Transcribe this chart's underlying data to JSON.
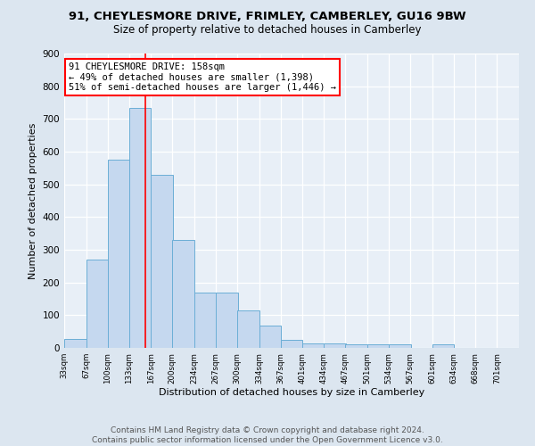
{
  "title": "91, CHEYLESMORE DRIVE, FRIMLEY, CAMBERLEY, GU16 9BW",
  "subtitle": "Size of property relative to detached houses in Camberley",
  "xlabel": "Distribution of detached houses by size in Camberley",
  "ylabel": "Number of detached properties",
  "bar_color": "#c5d8ef",
  "bar_edge_color": "#6baed6",
  "background_color": "#dce6f0",
  "plot_bg_color": "#e8eff7",
  "grid_color": "#ffffff",
  "vline_x": 158,
  "vline_color": "red",
  "annotation_title": "91 CHEYLESMORE DRIVE: 158sqm",
  "annotation_line1": "← 49% of detached houses are smaller (1,398)",
  "annotation_line2": "51% of semi-detached houses are larger (1,446) →",
  "bin_edges": [
    33,
    67,
    100,
    133,
    167,
    200,
    234,
    267,
    300,
    334,
    367,
    401,
    434,
    467,
    501,
    534,
    567,
    601,
    634,
    668,
    701
  ],
  "bar_heights": [
    27,
    270,
    575,
    735,
    530,
    330,
    170,
    170,
    115,
    68,
    25,
    15,
    15,
    10,
    10,
    10,
    0,
    10,
    0,
    0
  ],
  "ylim": [
    0,
    900
  ],
  "yticks": [
    0,
    100,
    200,
    300,
    400,
    500,
    600,
    700,
    800,
    900
  ],
  "footer_line1": "Contains HM Land Registry data © Crown copyright and database right 2024.",
  "footer_line2": "Contains public sector information licensed under the Open Government Licence v3.0.",
  "title_fontsize": 9.5,
  "subtitle_fontsize": 8.5,
  "xlabel_fontsize": 8,
  "ylabel_fontsize": 8,
  "footer_fontsize": 6.5,
  "ann_fontsize": 7.5,
  "ytick_fontsize": 7.5,
  "xtick_fontsize": 6.2
}
